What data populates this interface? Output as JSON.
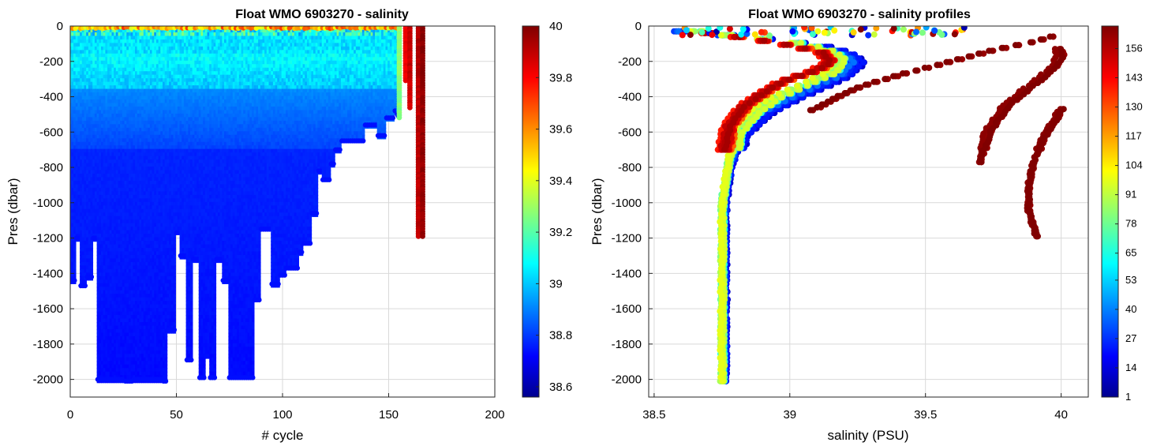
{
  "chart_data": [
    {
      "type": "heatmap",
      "title": "Float WMO 6903270 - salinity",
      "xlabel": "# cycle",
      "ylabel": "Pres (dbar)",
      "xlim": [
        0,
        200
      ],
      "ylim": [
        -2100,
        0
      ],
      "xticks": [
        0,
        50,
        100,
        150,
        200
      ],
      "yticks": [
        0,
        -200,
        -400,
        -600,
        -800,
        -1000,
        -1200,
        -1400,
        -1600,
        -1800,
        -2000
      ],
      "colormap": "jet",
      "clim": [
        38.56,
        40.0
      ],
      "colorbar_ticks": [
        38.6,
        38.8,
        39,
        39.2,
        39.4,
        39.6,
        39.8,
        40
      ],
      "grid": true,
      "cycles": [
        1,
        160,
        166
      ],
      "max_depth_profile": [
        [
          0,
          -1440
        ],
        [
          3,
          -1200
        ],
        [
          5,
          -1470
        ],
        [
          8,
          -1420
        ],
        [
          11,
          -1200
        ],
        [
          13,
          -2000
        ],
        [
          22,
          -2000
        ],
        [
          26,
          -2010
        ],
        [
          30,
          -2000
        ],
        [
          44,
          -2010
        ],
        [
          46,
          -1720
        ],
        [
          50,
          -1170
        ],
        [
          52,
          -1300
        ],
        [
          55,
          -1890
        ],
        [
          58,
          -1320
        ],
        [
          61,
          -1990
        ],
        [
          64,
          -1870
        ],
        [
          66,
          -1990
        ],
        [
          69,
          -1320
        ],
        [
          72,
          -1440
        ],
        [
          75,
          -1990
        ],
        [
          80,
          -1990
        ],
        [
          85,
          -1990
        ],
        [
          87,
          -1550
        ],
        [
          90,
          -1150
        ],
        [
          95,
          -1460
        ],
        [
          99,
          -1410
        ],
        [
          102,
          -1370
        ],
        [
          108,
          -1280
        ],
        [
          110,
          -1230
        ],
        [
          114,
          -1060
        ],
        [
          117,
          -820
        ],
        [
          119,
          -870
        ],
        [
          123,
          -780
        ],
        [
          125,
          -700
        ],
        [
          128,
          -650
        ],
        [
          135,
          -650
        ],
        [
          139,
          -560
        ],
        [
          145,
          -620
        ],
        [
          149,
          -520
        ],
        [
          153,
          -480
        ],
        [
          154,
          -500
        ]
      ],
      "recent_profiles": [
        {
          "cycle": 155,
          "max_pres": -520,
          "salinity": 39.3
        },
        {
          "cycle": 158,
          "max_pres": -320,
          "salinity": 39.85
        },
        {
          "cycle": 160,
          "max_pres": -470,
          "salinity": 39.9
        },
        {
          "cycle": 164,
          "max_pres": -1200,
          "salinity": 39.93
        },
        {
          "cycle": 166,
          "max_pres": -1200,
          "salinity": 39.99
        }
      ]
    },
    {
      "type": "scatter",
      "title": "Float WMO 6903270 - salinity profiles",
      "xlabel": "salinity (PSU)",
      "ylabel": "Pres (dbar)",
      "xlim": [
        38.48,
        40.1
      ],
      "ylim": [
        -2100,
        0
      ],
      "xticks": [
        38.5,
        39,
        39.5,
        40
      ],
      "yticks": [
        0,
        -200,
        -400,
        -600,
        -800,
        -1000,
        -1200,
        -1400,
        -1600,
        -1800,
        -2000
      ],
      "colormap": "jet",
      "color_by": "cycle",
      "clim": [
        1,
        166
      ],
      "colorbar_ticks": [
        1,
        14,
        27,
        40,
        53,
        65,
        78,
        91,
        104,
        117,
        130,
        143,
        156
      ],
      "grid": true,
      "series": [
        {
          "cycle_range": [
            1,
            40
          ],
          "points": [
            [
              38.6,
              -30
            ],
            [
              38.75,
              -50
            ],
            [
              38.95,
              -80
            ],
            [
              39.1,
              -110
            ],
            [
              39.2,
              -150
            ],
            [
              39.25,
              -200
            ],
            [
              39.2,
              -280
            ],
            [
              39.1,
              -350
            ],
            [
              39.0,
              -420
            ],
            [
              38.9,
              -500
            ],
            [
              38.82,
              -620
            ],
            [
              38.78,
              -800
            ],
            [
              38.76,
              -1000
            ],
            [
              38.76,
              -1200
            ],
            [
              38.76,
              -1500
            ],
            [
              38.76,
              -1800
            ],
            [
              38.76,
              -2010
            ]
          ]
        },
        {
          "cycle_range": [
            60,
            100
          ],
          "points": [
            [
              38.65,
              -30
            ],
            [
              38.8,
              -60
            ],
            [
              39.0,
              -90
            ],
            [
              39.12,
              -130
            ],
            [
              39.18,
              -180
            ],
            [
              39.15,
              -260
            ],
            [
              39.05,
              -330
            ],
            [
              38.95,
              -400
            ],
            [
              38.87,
              -480
            ],
            [
              38.8,
              -600
            ],
            [
              38.77,
              -800
            ],
            [
              38.75,
              -1000
            ],
            [
              38.75,
              -1300
            ],
            [
              38.75,
              -1600
            ],
            [
              38.75,
              -2010
            ]
          ]
        },
        {
          "cycle_range": [
            130,
            160
          ],
          "points": [
            [
              38.7,
              -40
            ],
            [
              38.85,
              -70
            ],
            [
              39.0,
              -110
            ],
            [
              39.12,
              -150
            ],
            [
              39.15,
              -200
            ],
            [
              39.1,
              -250
            ],
            [
              38.98,
              -310
            ],
            [
              38.9,
              -380
            ],
            [
              38.83,
              -460
            ],
            [
              38.78,
              -560
            ],
            [
              38.76,
              -700
            ]
          ]
        },
        {
          "cycle_range": [
            162,
            166
          ],
          "points": [
            [
              39.08,
              -480
            ],
            [
              39.25,
              -350
            ],
            [
              39.4,
              -280
            ],
            [
              39.55,
              -220
            ],
            [
              39.67,
              -170
            ],
            [
              39.8,
              -120
            ],
            [
              39.9,
              -90
            ],
            [
              39.97,
              -60
            ]
          ]
        },
        {
          "cycle_range": [
            162,
            166
          ],
          "points": [
            [
              39.7,
              -780
            ],
            [
              39.73,
              -600
            ],
            [
              39.8,
              -450
            ],
            [
              39.88,
              -350
            ],
            [
              39.94,
              -280
            ],
            [
              39.98,
              -220
            ],
            [
              40.0,
              -170
            ],
            [
              39.99,
              -130
            ]
          ]
        },
        {
          "cycle_range": [
            163,
            166
          ],
          "points": [
            [
              39.91,
              -1200
            ],
            [
              39.88,
              -1050
            ],
            [
              39.88,
              -900
            ],
            [
              39.9,
              -760
            ],
            [
              39.93,
              -640
            ],
            [
              39.97,
              -550
            ],
            [
              40.0,
              -470
            ]
          ]
        }
      ]
    }
  ]
}
